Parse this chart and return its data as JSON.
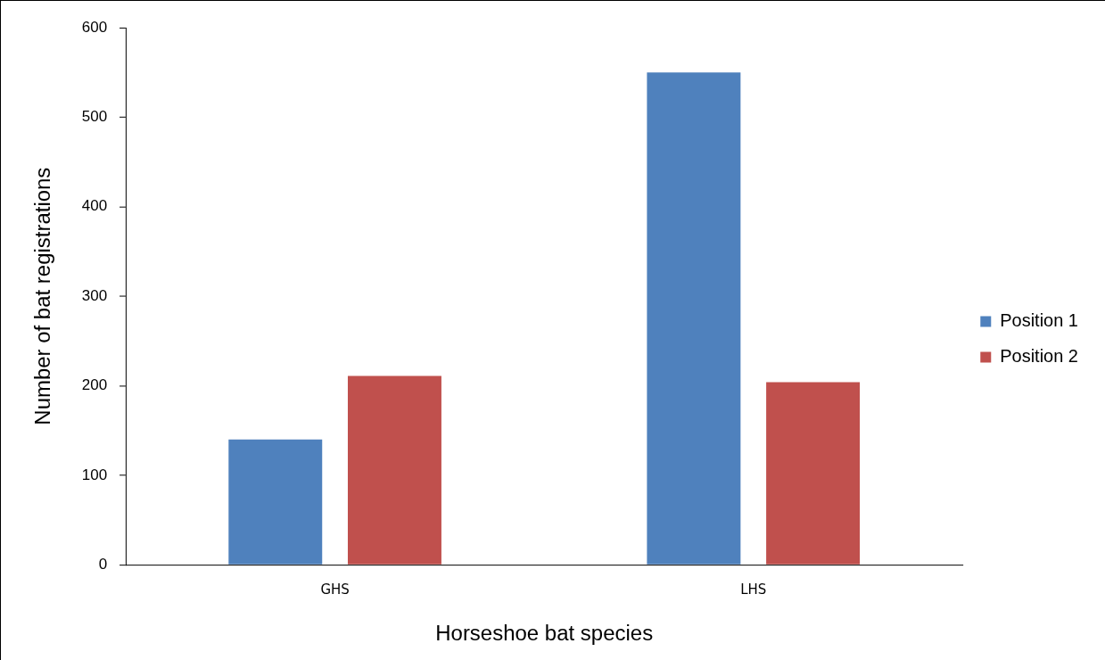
{
  "chart_data": {
    "type": "bar",
    "xlabel": "Horseshoe bat species",
    "ylabel": "Number of bat registrations",
    "categories": [
      "GHS",
      "LHS"
    ],
    "series": [
      {
        "name": "Position 1",
        "color": "#4f81bd",
        "values": [
          140,
          550
        ]
      },
      {
        "name": "Position 2",
        "color": "#c0504d",
        "values": [
          211,
          204
        ]
      }
    ],
    "ylim": [
      0,
      600
    ],
    "yticks": [
      0,
      100,
      200,
      300,
      400,
      500,
      600
    ],
    "grid": false,
    "legend": "right"
  }
}
